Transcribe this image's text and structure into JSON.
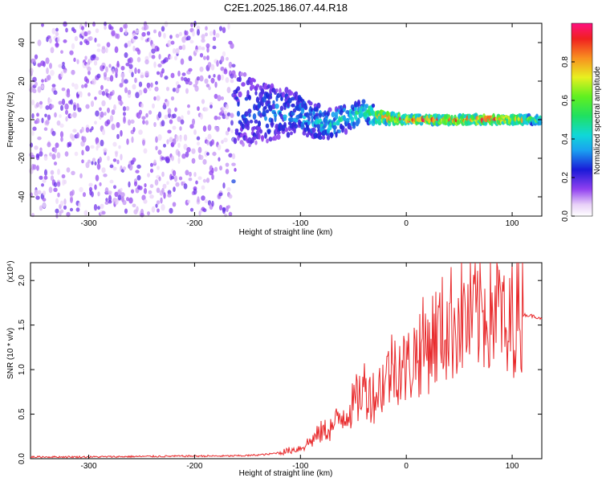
{
  "figure_title": "C2E1.2025.186.07.44.R18",
  "chart_data": [
    {
      "type": "heatmap",
      "xlabel": "Height of straight line (km)",
      "ylabel": "Frequency (Hz)",
      "xlim": [
        -355,
        128
      ],
      "ylim": [
        -50,
        50
      ],
      "xticks": [
        -300,
        -200,
        -100,
        0,
        100
      ],
      "yticks": [
        -40,
        -20,
        0,
        20,
        40
      ],
      "colorbar": {
        "label": "Normalized spectral amplitude",
        "range": [
          0,
          1
        ],
        "ticks": [
          0.0,
          0.2,
          0.4,
          0.6,
          0.8
        ],
        "colormap": "rainbow: white → violet → blue → cyan → green → yellow → red"
      },
      "description_points": [
        {
          "x": -350,
          "band_center": 0,
          "band_halfwidth": 50,
          "amplitude": 0.12
        },
        {
          "x": -165,
          "band_center": 0,
          "band_halfwidth": 50,
          "amplitude": 0.12
        },
        {
          "x": -160,
          "band_center": 5,
          "band_halfwidth": 20,
          "amplitude": 0.3
        },
        {
          "x": -100,
          "band_center": 3,
          "band_halfwidth": 10,
          "amplitude": 0.4
        },
        {
          "x": -75,
          "band_center": -3,
          "band_halfwidth": 8,
          "amplitude": 0.45
        },
        {
          "x": -40,
          "band_center": 4,
          "band_halfwidth": 6,
          "amplitude": 0.55
        },
        {
          "x": -20,
          "band_center": 1,
          "band_halfwidth": 3,
          "amplitude": 0.9
        },
        {
          "x": 0,
          "band_center": 0,
          "band_halfwidth": 2,
          "amplitude": 0.95
        },
        {
          "x": 90,
          "band_center": 0,
          "band_halfwidth": 2,
          "amplitude": 1.0
        },
        {
          "x": 125,
          "band_center": 0,
          "band_halfwidth": 2,
          "amplitude": 0.6
        }
      ]
    },
    {
      "type": "line",
      "xlabel": "Height of straight line (km)",
      "ylabel": "SNR (10 * v/v)",
      "y_multiplier": "(x10⁴)",
      "xlim": [
        -355,
        128
      ],
      "ylim": [
        0,
        2.2
      ],
      "xticks": [
        -300,
        -200,
        -100,
        0,
        100
      ],
      "yticks": [
        0.0,
        0.5,
        1.0,
        1.5,
        2.0
      ],
      "series": [
        {
          "color": "#e8282a",
          "x": [
            -355,
            -300,
            -250,
            -200,
            -170,
            -150,
            -130,
            -115,
            -100,
            -90,
            -80,
            -70,
            -60,
            -50,
            -40,
            -30,
            -20,
            -10,
            0,
            10,
            20,
            30,
            40,
            50,
            60,
            70,
            80,
            90,
            95,
            100,
            110,
            120,
            128
          ],
          "y": [
            0.02,
            0.02,
            0.025,
            0.03,
            0.03,
            0.035,
            0.05,
            0.08,
            0.12,
            0.2,
            0.3,
            0.35,
            0.5,
            0.6,
            0.8,
            0.7,
            0.9,
            1.1,
            1.0,
            1.2,
            1.3,
            1.4,
            1.5,
            1.6,
            1.55,
            1.65,
            1.7,
            1.7,
            1.2,
            1.65,
            1.62,
            1.6,
            1.58
          ]
        }
      ]
    }
  ]
}
